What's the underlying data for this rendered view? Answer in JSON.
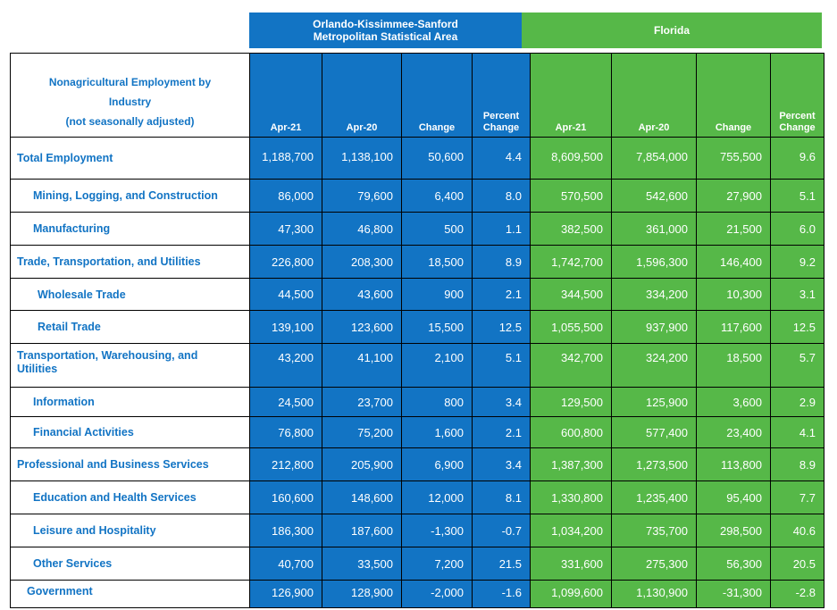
{
  "regions": {
    "msa_line1": "Orlando-Kissimmee-Sanford",
    "msa_line2": "Metropolitan Statistical Area",
    "florida": "Florida"
  },
  "header": {
    "label_line1": "Nonagricultural Employment by",
    "label_line2": "Industry",
    "label_line3": "(not seasonally adjusted)",
    "apr21": "Apr-21",
    "apr20": "Apr-20",
    "change": "Change",
    "percent": "Percent",
    "change2": "Change"
  },
  "colors": {
    "msa": "#1274c4",
    "florida": "#56b848",
    "label_text": "#1274c4"
  },
  "rows": [
    {
      "label": "Total Employment",
      "msa": [
        "1,188,700",
        "1,138,100",
        "50,600",
        "4.4"
      ],
      "fl": [
        "8,609,500",
        "7,854,000",
        "755,500",
        "9.6"
      ]
    },
    {
      "label": "Mining, Logging, and Construction",
      "msa": [
        "86,000",
        "79,600",
        "6,400",
        "8.0"
      ],
      "fl": [
        "570,500",
        "542,600",
        "27,900",
        "5.1"
      ]
    },
    {
      "label": "Manufacturing",
      "msa": [
        "47,300",
        "46,800",
        "500",
        "1.1"
      ],
      "fl": [
        "382,500",
        "361,000",
        "21,500",
        "6.0"
      ]
    },
    {
      "label": "Trade, Transportation, and Utilities",
      "msa": [
        "226,800",
        "208,300",
        "18,500",
        "8.9"
      ],
      "fl": [
        "1,742,700",
        "1,596,300",
        "146,400",
        "9.2"
      ]
    },
    {
      "label": "Wholesale Trade",
      "msa": [
        "44,500",
        "43,600",
        "900",
        "2.1"
      ],
      "fl": [
        "344,500",
        "334,200",
        "10,300",
        "3.1"
      ]
    },
    {
      "label": "Retail Trade",
      "msa": [
        "139,100",
        "123,600",
        "15,500",
        "12.5"
      ],
      "fl": [
        "1,055,500",
        "937,900",
        "117,600",
        "12.5"
      ]
    },
    {
      "label_line1": "Transportation, Warehousing, and",
      "label_line2": "Utilities",
      "msa": [
        "43,200",
        "41,100",
        "2,100",
        "5.1"
      ],
      "fl": [
        "342,700",
        "324,200",
        "18,500",
        "5.7"
      ]
    },
    {
      "label": "Information",
      "msa": [
        "24,500",
        "23,700",
        "800",
        "3.4"
      ],
      "fl": [
        "129,500",
        "125,900",
        "3,600",
        "2.9"
      ]
    },
    {
      "label": "Financial Activities",
      "msa": [
        "76,800",
        "75,200",
        "1,600",
        "2.1"
      ],
      "fl": [
        "600,800",
        "577,400",
        "23,400",
        "4.1"
      ]
    },
    {
      "label": "Professional and Business Services",
      "msa": [
        "212,800",
        "205,900",
        "6,900",
        "3.4"
      ],
      "fl": [
        "1,387,300",
        "1,273,500",
        "113,800",
        "8.9"
      ]
    },
    {
      "label": "Education and Health Services",
      "msa": [
        "160,600",
        "148,600",
        "12,000",
        "8.1"
      ],
      "fl": [
        "1,330,800",
        "1,235,400",
        "95,400",
        "7.7"
      ]
    },
    {
      "label": "Leisure and Hospitality",
      "msa": [
        "186,300",
        "187,600",
        "-1,300",
        "-0.7"
      ],
      "fl": [
        "1,034,200",
        "735,700",
        "298,500",
        "40.6"
      ]
    },
    {
      "label": "Other Services",
      "msa": [
        "40,700",
        "33,500",
        "7,200",
        "21.5"
      ],
      "fl": [
        "331,600",
        "275,300",
        "56,300",
        "20.5"
      ]
    },
    {
      "label": "Government",
      "msa": [
        "126,900",
        "128,900",
        "-2,000",
        "-1.6"
      ],
      "fl": [
        "1,099,600",
        "1,130,900",
        "-31,300",
        "-2.8"
      ]
    }
  ]
}
